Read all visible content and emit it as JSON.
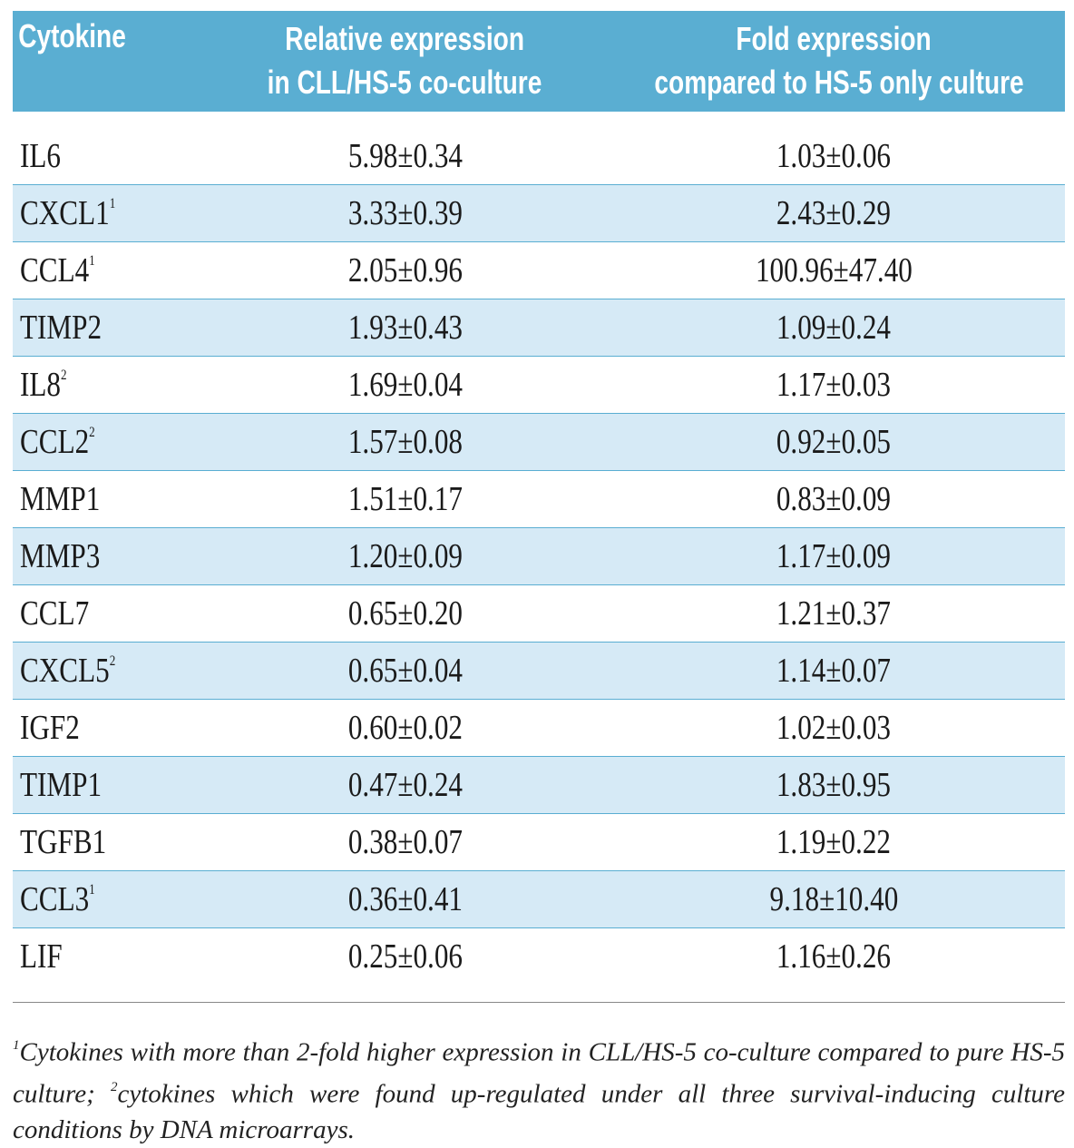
{
  "table": {
    "headers": [
      [
        "Cytokine"
      ],
      [
        "Relative expression",
        "in CLL/HS-5 co-culture"
      ],
      [
        "Fold expression",
        "compared to HS-5 only culture"
      ]
    ],
    "rows": [
      {
        "name": "IL6",
        "sup": "",
        "rel": "5.98±0.34",
        "fold": "1.03±0.06"
      },
      {
        "name": "CXCL1",
        "sup": "1",
        "rel": "3.33±0.39",
        "fold": "2.43±0.29"
      },
      {
        "name": "CCL4",
        "sup": "1",
        "rel": "2.05±0.96",
        "fold": "100.96±47.40"
      },
      {
        "name": "TIMP2",
        "sup": "",
        "rel": "1.93±0.43",
        "fold": "1.09±0.24"
      },
      {
        "name": "IL8",
        "sup": "2",
        "rel": "1.69±0.04",
        "fold": "1.17±0.03"
      },
      {
        "name": "CCL2",
        "sup": "2",
        "rel": "1.57±0.08",
        "fold": "0.92±0.05"
      },
      {
        "name": "MMP1",
        "sup": "",
        "rel": "1.51±0.17",
        "fold": "0.83±0.09"
      },
      {
        "name": "MMP3",
        "sup": "",
        "rel": "1.20±0.09",
        "fold": "1.17±0.09"
      },
      {
        "name": "CCL7",
        "sup": "",
        "rel": "0.65±0.20",
        "fold": "1.21±0.37"
      },
      {
        "name": "CXCL5",
        "sup": "2",
        "rel": "0.65±0.04",
        "fold": "1.14±0.07"
      },
      {
        "name": "IGF2",
        "sup": "",
        "rel": "0.60±0.02",
        "fold": "1.02±0.03"
      },
      {
        "name": "TIMP1",
        "sup": "",
        "rel": "0.47±0.24",
        "fold": "1.83±0.95"
      },
      {
        "name": "TGFB1",
        "sup": "",
        "rel": "0.38±0.07",
        "fold": "1.19±0.22"
      },
      {
        "name": "CCL3",
        "sup": "1",
        "rel": "0.36±0.41",
        "fold": "9.18±10.40"
      },
      {
        "name": "LIF",
        "sup": "",
        "rel": "0.25±0.06",
        "fold": "1.16±0.26"
      }
    ]
  },
  "footnote": {
    "sup1": "1",
    "text1": "Cytokines with more than 2-fold higher expression in CLL/HS-5 co-culture compared to pure HS-5 culture;",
    "sup2": "2",
    "text2": "cytokines which were found up-regulated under all three survival-inducing culture conditions by DNA microarrays."
  },
  "colors": {
    "header_bg": "#5aaed2",
    "alt_row_bg": "#d6eaf6"
  }
}
